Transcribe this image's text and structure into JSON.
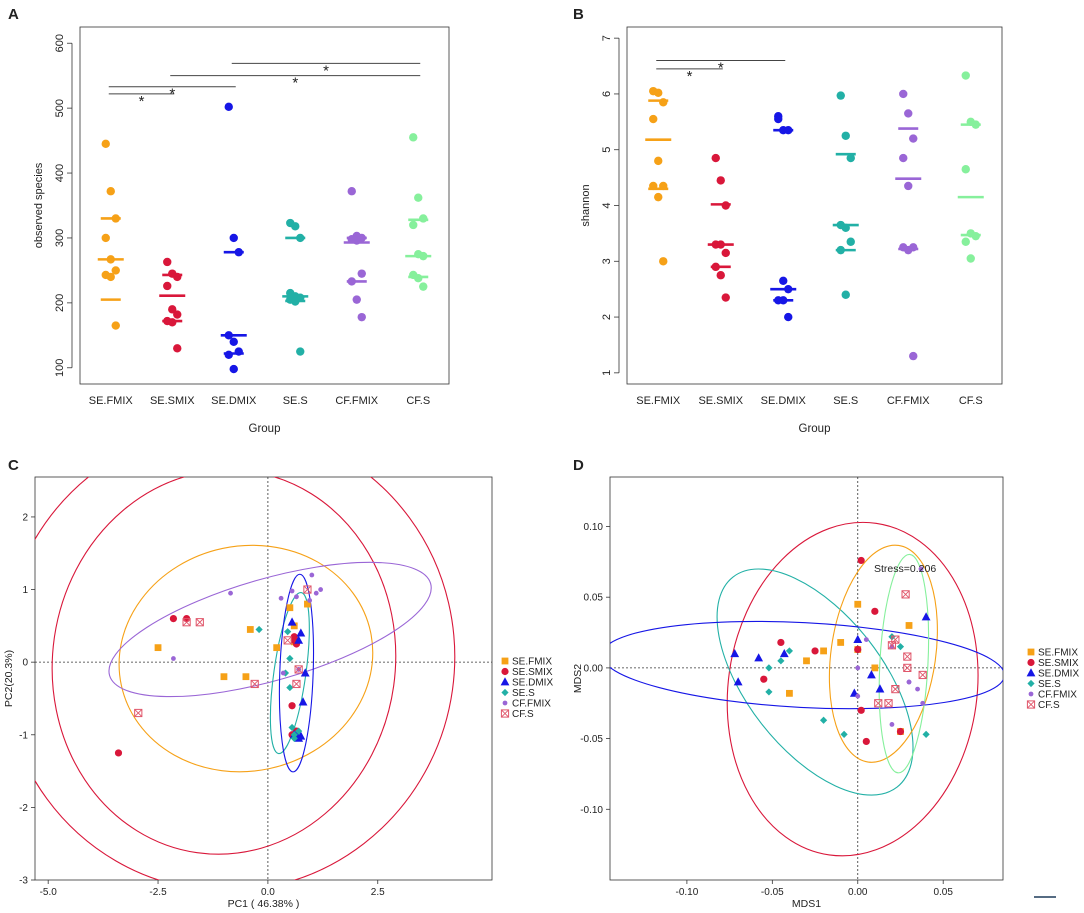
{
  "colors": {
    "SE.FMIX": "#F6A117",
    "SE.SMIX": "#D9173A",
    "SE.DMIX": "#1616E6",
    "SE.S": "#22B0A6",
    "CF.FMIX": "#9A66D6",
    "CF.S": "#86F09C",
    "CF.S_ord": "#E0566A"
  },
  "chart_data": [
    {
      "panel": "A",
      "type": "scatter",
      "title": "",
      "xlabel": "Group",
      "ylabel": "observed species",
      "ylim": [
        75,
        625
      ],
      "yticks": [
        100,
        200,
        300,
        400,
        500,
        600
      ],
      "categories": [
        "SE.FMIX",
        "SE.SMIX",
        "SE.DMIX",
        "SE.S",
        "CF.FMIX",
        "CF.S"
      ],
      "series": [
        {
          "name": "SE.FMIX",
          "points": [
            445,
            372,
            330,
            300,
            267,
            250,
            243,
            240,
            165
          ],
          "mean": 267,
          "sd": [
            205,
            330
          ]
        },
        {
          "name": "SE.SMIX",
          "points": [
            263,
            245,
            240,
            226,
            190,
            182,
            172,
            170,
            130
          ],
          "mean": 211,
          "sd": [
            172,
            243
          ]
        },
        {
          "name": "SE.DMIX",
          "points": [
            502,
            300,
            278,
            150,
            140,
            125,
            120,
            98
          ],
          "mean": 150,
          "sd": [
            122,
            278
          ]
        },
        {
          "name": "SE.S",
          "points": [
            323,
            318,
            300,
            215,
            210,
            208,
            205,
            202,
            125
          ],
          "mean": 210,
          "sd": [
            203,
            300
          ]
        },
        {
          "name": "CF.FMIX",
          "points": [
            372,
            303,
            300,
            298,
            296,
            245,
            233,
            205,
            178
          ],
          "mean": 293,
          "sd": [
            233,
            300
          ]
        },
        {
          "name": "CF.S",
          "points": [
            455,
            362,
            330,
            320,
            275,
            272,
            243,
            238,
            225
          ],
          "mean": 272,
          "sd": [
            240,
            328
          ]
        }
      ],
      "significance": [
        {
          "from": "SE.FMIX",
          "to": "SE.SMIX",
          "label": "*",
          "y": 522
        },
        {
          "from": "SE.FMIX",
          "to": "SE.DMIX",
          "label": "*",
          "y": 533
        },
        {
          "from": "SE.SMIX",
          "to": "CF.S",
          "label": "*",
          "y": 550
        },
        {
          "from": "SE.DMIX",
          "to": "CF.S",
          "label": "*",
          "y": 569
        }
      ]
    },
    {
      "panel": "B",
      "type": "scatter",
      "title": "",
      "xlabel": "Group",
      "ylabel": "shannon",
      "ylim": [
        0.8,
        7.2
      ],
      "yticks": [
        1,
        2,
        3,
        4,
        5,
        6,
        7
      ],
      "categories": [
        "SE.FMIX",
        "SE.SMIX",
        "SE.DMIX",
        "SE.S",
        "CF.FMIX",
        "CF.S"
      ],
      "series": [
        {
          "name": "SE.FMIX",
          "points": [
            6.05,
            6.02,
            5.85,
            5.55,
            4.8,
            4.35,
            4.35,
            4.15,
            3.0
          ],
          "mean": 5.18,
          "sd": [
            4.3,
            5.88
          ]
        },
        {
          "name": "SE.SMIX",
          "points": [
            4.85,
            4.45,
            4.0,
            3.3,
            3.3,
            3.15,
            2.9,
            2.75,
            2.35
          ],
          "mean": 3.3,
          "sd": [
            2.9,
            4.02
          ]
        },
        {
          "name": "SE.DMIX",
          "points": [
            5.6,
            5.35,
            5.35,
            5.55,
            2.65,
            2.5,
            2.3,
            2.3,
            2.0
          ],
          "mean": 2.5,
          "sd": [
            2.3,
            5.35
          ]
        },
        {
          "name": "SE.S",
          "points": [
            5.97,
            5.25,
            4.85,
            3.65,
            3.6,
            3.35,
            3.2,
            2.4
          ],
          "mean": 3.65,
          "sd": [
            3.2,
            4.92
          ]
        },
        {
          "name": "CF.FMIX",
          "points": [
            6.0,
            5.65,
            5.2,
            4.85,
            4.35,
            3.25,
            3.25,
            3.2,
            1.3
          ],
          "mean": 4.48,
          "sd": [
            3.22,
            5.38
          ]
        },
        {
          "name": "CF.S",
          "points": [
            6.33,
            5.5,
            5.45,
            4.65,
            3.5,
            3.45,
            3.35,
            3.05
          ],
          "mean": 4.15,
          "sd": [
            3.47,
            5.45
          ]
        }
      ],
      "significance": [
        {
          "from": "SE.FMIX",
          "to": "SE.SMIX",
          "label": "*",
          "y": 6.45
        },
        {
          "from": "SE.FMIX",
          "to": "SE.DMIX",
          "label": "*",
          "y": 6.6
        }
      ]
    },
    {
      "panel": "C",
      "type": "scatter",
      "title": "",
      "xlabel": "PC1 ( 46.38% )",
      "ylabel": "PC2(20.3%)",
      "xlim": [
        -5.3,
        5.1
      ],
      "ylim": [
        -3.0,
        2.55
      ],
      "xticks": [
        -5.0,
        -2.5,
        0.0,
        2.5
      ],
      "xtick_labels": [
        "-5.0",
        "-2.5",
        "0.0",
        "2.5"
      ],
      "yticks": [
        -3,
        -2,
        -1,
        0,
        1,
        2
      ],
      "legend": [
        "SE.FMIX",
        "SE.SMIX",
        "SE.DMIX",
        "SE.S",
        "CF.FMIX",
        "CF.S"
      ],
      "series": [
        {
          "name": "SE.FMIX",
          "marker": "square",
          "points": [
            [
              -2.5,
              0.2
            ],
            [
              -0.5,
              -0.2
            ],
            [
              -1.0,
              -0.2
            ],
            [
              -0.4,
              0.45
            ],
            [
              0.5,
              0.75
            ],
            [
              0.2,
              0.2
            ],
            [
              0.6,
              0.5
            ],
            [
              0.9,
              0.8
            ],
            [
              0.6,
              0.28
            ]
          ]
        },
        {
          "name": "SE.SMIX",
          "marker": "circle",
          "points": [
            [
              -3.4,
              -1.25
            ],
            [
              -2.15,
              0.6
            ],
            [
              -1.85,
              0.6
            ],
            [
              0.6,
              0.3
            ],
            [
              0.65,
              0.25
            ],
            [
              0.55,
              -1.0
            ],
            [
              0.65,
              -0.95
            ],
            [
              0.6,
              0.35
            ],
            [
              0.55,
              -0.6
            ]
          ]
        },
        {
          "name": "SE.DMIX",
          "marker": "triangle",
          "points": [
            [
              0.55,
              0.55
            ],
            [
              0.75,
              0.4
            ],
            [
              0.7,
              0.3
            ],
            [
              0.85,
              -0.15
            ],
            [
              0.8,
              -0.55
            ],
            [
              0.6,
              -1.0
            ],
            [
              0.7,
              -1.05
            ],
            [
              0.65,
              -1.0
            ],
            [
              0.75,
              -1.02
            ]
          ]
        },
        {
          "name": "SE.S",
          "marker": "diamond",
          "points": [
            [
              -0.2,
              0.45
            ],
            [
              0.5,
              0.05
            ],
            [
              0.4,
              -0.15
            ],
            [
              0.5,
              -0.35
            ],
            [
              0.55,
              -0.9
            ],
            [
              0.6,
              -1.0
            ],
            [
              0.6,
              -1.05
            ],
            [
              0.7,
              -0.95
            ],
            [
              0.45,
              0.42
            ]
          ]
        },
        {
          "name": "CF.FMIX",
          "marker": "small-circle",
          "points": [
            [
              -2.15,
              0.05
            ],
            [
              -0.85,
              0.95
            ],
            [
              0.3,
              0.88
            ],
            [
              0.55,
              0.98
            ],
            [
              0.65,
              0.9
            ],
            [
              1.1,
              0.95
            ],
            [
              1.2,
              1.0
            ],
            [
              0.95,
              0.85
            ],
            [
              1.0,
              1.2
            ],
            [
              0.7,
              -0.1
            ],
            [
              0.35,
              -0.15
            ]
          ]
        },
        {
          "name": "CF.S",
          "marker": "boxcross",
          "points": [
            [
              -2.95,
              -0.7
            ],
            [
              -1.85,
              0.55
            ],
            [
              -1.55,
              0.55
            ],
            [
              -0.3,
              -0.3
            ],
            [
              0.65,
              -0.3
            ],
            [
              0.45,
              0.3
            ],
            [
              0.7,
              -0.1
            ],
            [
              0.9,
              1.0
            ]
          ]
        }
      ],
      "ellipses": [
        {
          "group": "SE.SMIX",
          "cx": -1.0,
          "cy": 0.0,
          "rx": 3.9,
          "ry": 2.65,
          "angle": -8
        },
        {
          "group": "SE.SMIX",
          "cx": -0.9,
          "cy": 0.05,
          "rx": 5.15,
          "ry": 3.2,
          "angle": -8
        },
        {
          "group": "SE.FMIX",
          "cx": -0.5,
          "cy": 0.05,
          "rx": 2.9,
          "ry": 1.55,
          "angle": 12
        },
        {
          "group": "CF.FMIX",
          "cx": 0.05,
          "cy": 0.45,
          "rx": 3.8,
          "ry": 0.7,
          "angle": 16
        },
        {
          "group": "SE.S",
          "cx": 0.5,
          "cy": -0.15,
          "rx": 1.85,
          "ry": 0.22,
          "angle": 82
        },
        {
          "group": "SE.DMIX",
          "cx": 0.65,
          "cy": -0.15,
          "rx": 2.25,
          "ry": 0.23,
          "angle": 88
        }
      ]
    },
    {
      "panel": "D",
      "type": "scatter",
      "title": "",
      "xlabel": "MDS1",
      "ylabel": "MDS2",
      "xlim": [
        -0.145,
        0.085
      ],
      "ylim": [
        -0.15,
        0.135
      ],
      "xticks": [
        -0.1,
        -0.05,
        0.0,
        0.05
      ],
      "xtick_labels": [
        "-0.10",
        "-0.05",
        "0.00",
        "0.05"
      ],
      "yticks": [
        -0.1,
        -0.05,
        0.0,
        0.05,
        0.1
      ],
      "ytick_labels": [
        "-0.10",
        "-0.05",
        "0.00",
        "0.05",
        "0.10"
      ],
      "annotation": "Stress=0.206",
      "legend": [
        "SE.FMIX",
        "SE.SMIX",
        "SE.DMIX",
        "SE.S",
        "CF.FMIX",
        "CF.S"
      ],
      "series": [
        {
          "name": "SE.FMIX",
          "marker": "square",
          "points": [
            [
              0.0,
              0.045
            ],
            [
              -0.01,
              0.018
            ],
            [
              -0.03,
              0.005
            ],
            [
              -0.04,
              -0.018
            ],
            [
              0.0,
              0.013
            ],
            [
              -0.02,
              0.012
            ],
            [
              0.03,
              0.03
            ],
            [
              0.025,
              -0.045
            ],
            [
              0.01,
              0.0
            ]
          ]
        },
        {
          "name": "SE.SMIX",
          "marker": "circle",
          "points": [
            [
              0.002,
              0.076
            ],
            [
              0.01,
              0.04
            ],
            [
              -0.025,
              0.012
            ],
            [
              -0.045,
              0.018
            ],
            [
              -0.055,
              -0.008
            ],
            [
              0.005,
              -0.052
            ],
            [
              0.025,
              -0.045
            ],
            [
              0.002,
              -0.03
            ],
            [
              0.0,
              0.013
            ]
          ]
        },
        {
          "name": "SE.DMIX",
          "marker": "triangle",
          "points": [
            [
              -0.07,
              -0.01
            ],
            [
              -0.072,
              0.01
            ],
            [
              -0.058,
              0.007
            ],
            [
              -0.043,
              0.01
            ],
            [
              0.0,
              0.02
            ],
            [
              0.008,
              -0.005
            ],
            [
              0.013,
              -0.015
            ],
            [
              -0.002,
              -0.018
            ],
            [
              0.04,
              0.036
            ]
          ]
        },
        {
          "name": "SE.S",
          "marker": "diamond",
          "points": [
            [
              -0.052,
              0.0
            ],
            [
              -0.045,
              0.005
            ],
            [
              -0.04,
              0.012
            ],
            [
              -0.052,
              -0.017
            ],
            [
              -0.02,
              -0.037
            ],
            [
              -0.008,
              -0.047
            ],
            [
              0.02,
              0.022
            ],
            [
              0.025,
              0.015
            ],
            [
              0.04,
              -0.047
            ]
          ]
        },
        {
          "name": "CF.FMIX",
          "marker": "small-circle",
          "points": [
            [
              0.037,
              0.07
            ],
            [
              0.005,
              0.02
            ],
            [
              0.0,
              0.0
            ],
            [
              0.02,
              0.015
            ],
            [
              0.03,
              -0.01
            ],
            [
              0.035,
              -0.015
            ],
            [
              0.0,
              -0.02
            ],
            [
              0.02,
              -0.04
            ],
            [
              0.03,
              -0.01
            ],
            [
              0.038,
              -0.025
            ]
          ]
        },
        {
          "name": "CF.S",
          "marker": "boxcross",
          "points": [
            [
              0.028,
              0.052
            ],
            [
              0.02,
              0.016
            ],
            [
              0.029,
              0.008
            ],
            [
              0.029,
              0.0
            ],
            [
              0.038,
              -0.005
            ],
            [
              0.022,
              -0.015
            ],
            [
              0.018,
              -0.025
            ],
            [
              0.012,
              -0.025
            ],
            [
              0.022,
              0.02
            ]
          ]
        }
      ],
      "ellipses": [
        {
          "group": "SE.SMIX",
          "cx": -0.003,
          "cy": -0.015,
          "rx": 0.098,
          "ry": 0.088,
          "angle": 82
        },
        {
          "group": "SE.S",
          "cx": -0.025,
          "cy": -0.01,
          "rx": 0.078,
          "ry": 0.048,
          "angle": -52
        },
        {
          "group": "SE.FMIX",
          "cx": 0.015,
          "cy": 0.01,
          "rx": 0.064,
          "ry": 0.037,
          "angle": 82
        },
        {
          "group": "SE.DMIX",
          "cx": -0.032,
          "cy": 0.002,
          "rx": 0.118,
          "ry": 0.03,
          "angle": -3
        },
        {
          "group": "CF.S",
          "cx": 0.027,
          "cy": 0.003,
          "rx": 0.064,
          "ry": 0.017,
          "angle": 87
        }
      ]
    }
  ]
}
